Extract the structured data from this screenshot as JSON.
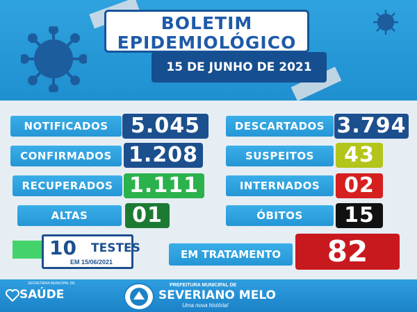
{
  "header": {
    "title_line1": "BOLETIM",
    "title_line2": "EPIDEMIOLÓGICO",
    "date": "15 DE JUNHO DE 2021"
  },
  "stats_left": [
    {
      "label": "NOTIFICADOS",
      "value": "5.045",
      "color": "#1c4f8e"
    },
    {
      "label": "CONFIRMADOS",
      "value": "1.208",
      "color": "#1c4f8e"
    },
    {
      "label": "RECUPERADOS",
      "value": "1.111",
      "color": "#2bb24c"
    },
    {
      "label": "ALTAS",
      "value": "01",
      "color": "#1d7a33"
    }
  ],
  "stats_right": [
    {
      "label": "DESCARTADOS",
      "value": "3.794",
      "color": "#1c4f8e"
    },
    {
      "label": "SUSPEITOS",
      "value": "43",
      "color": "#b3c51a"
    },
    {
      "label": "INTERNADOS",
      "value": "02",
      "color": "#d61f1f"
    },
    {
      "label": "ÓBITOS",
      "value": "15",
      "color": "#111111"
    }
  ],
  "tests": {
    "count": "10",
    "label": "TESTES",
    "date": "EM 15/06/2021"
  },
  "treatment": {
    "label": "EM TRATAMENTO",
    "value": "82"
  },
  "footer": {
    "health_small": "SECRETARIA MUNICIPAL DE",
    "health_logo": "SAÚDE",
    "prefecture_small": "PREFEITURA MUNICIPAL DE",
    "city": "SEVERIANO MELO",
    "slogan": "Uma nova história!"
  }
}
